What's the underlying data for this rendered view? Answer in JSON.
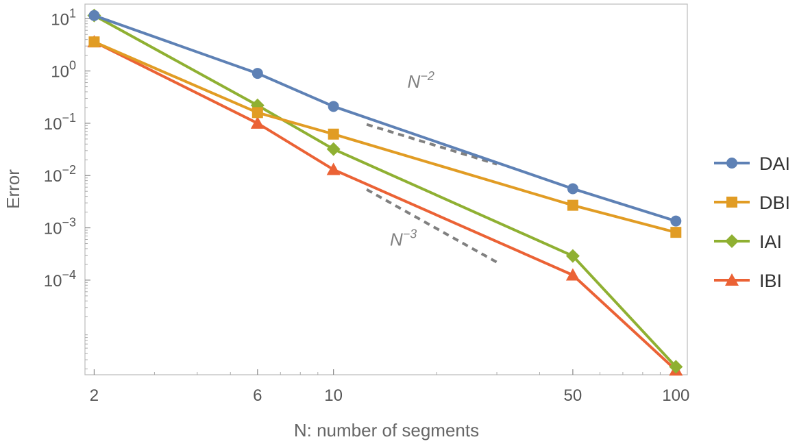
{
  "chart_data": {
    "type": "line",
    "xscale": "log",
    "yscale": "log",
    "xlabel": "N: number of segments",
    "ylabel": "Error",
    "xlim": [
      1.88,
      108
    ],
    "ylim": [
      1.55e-06,
      19
    ],
    "xticks": [
      {
        "value": 2,
        "label": "2"
      },
      {
        "value": 6,
        "label": "6"
      },
      {
        "value": 10,
        "label": "10"
      },
      {
        "value": 50,
        "label": "50"
      },
      {
        "value": 100,
        "label": "100"
      }
    ],
    "yticks": [
      {
        "value": 10,
        "base": "10",
        "exp": "1"
      },
      {
        "value": 1,
        "base": "10",
        "exp": "0"
      },
      {
        "value": 0.1,
        "base": "10",
        "exp": "−1"
      },
      {
        "value": 0.01,
        "base": "10",
        "exp": "−2"
      },
      {
        "value": 0.001,
        "base": "10",
        "exp": "−3"
      },
      {
        "value": 0.0001,
        "base": "10",
        "exp": "−4"
      }
    ],
    "x": [
      2,
      6,
      10,
      50,
      100
    ],
    "series": [
      {
        "name": "DAI",
        "color": "#5e81b5",
        "marker": "circle",
        "values": [
          11.5,
          0.9,
          0.21,
          0.0056,
          0.00135
        ]
      },
      {
        "name": "DBI",
        "color": "#e19c24",
        "marker": "square",
        "values": [
          3.6,
          0.16,
          0.062,
          0.0027,
          0.00082
        ]
      },
      {
        "name": "IAI",
        "color": "#8fb032",
        "marker": "diamond",
        "values": [
          11.5,
          0.22,
          0.032,
          0.00029,
          2.2e-06
        ]
      },
      {
        "name": "IBI",
        "color": "#eb6235",
        "marker": "triangle",
        "values": [
          3.6,
          0.1,
          0.013,
          0.000125,
          1.9e-06
        ]
      }
    ],
    "reference_lines": [
      {
        "name": "N^-2",
        "base": "N",
        "exp": "−2",
        "color": "#808080",
        "x": [
          12.5,
          30
        ],
        "y": [
          0.095,
          0.0165
        ],
        "label_x": 18,
        "label_y": 0.48
      },
      {
        "name": "N^-3",
        "base": "N",
        "exp": "−3",
        "color": "#808080",
        "x": [
          12.5,
          30
        ],
        "y": [
          0.0054,
          0.00022
        ],
        "label_x": 16,
        "label_y": 0.00046
      }
    ],
    "legend_position": "right"
  }
}
